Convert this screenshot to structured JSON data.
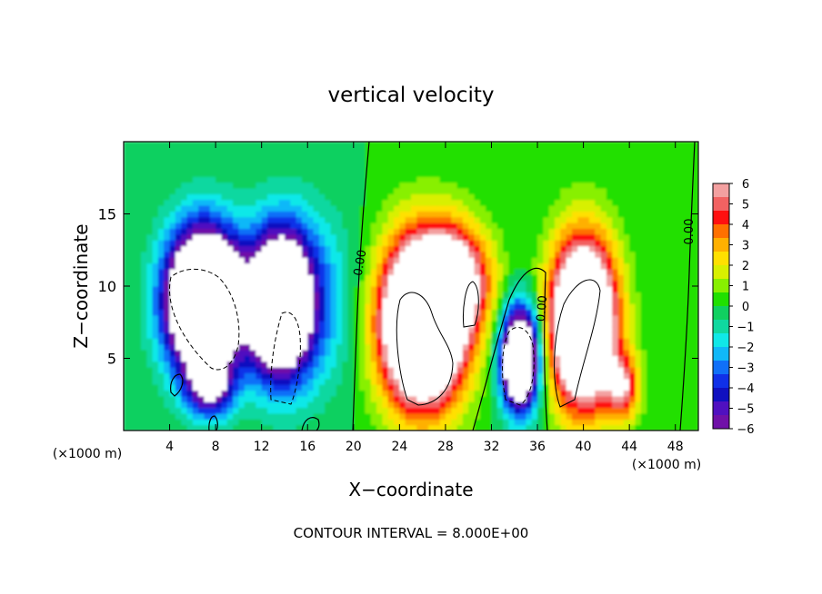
{
  "chart_data": {
    "type": "heatmap",
    "title": "vertical velocity",
    "xlabel": "X−coordinate",
    "ylabel": "Z−coordinate",
    "x_unit_left": "(×1000 m)",
    "x_unit_right": "(×1000 m)",
    "xlim": [
      0,
      50
    ],
    "ylim": [
      0,
      20
    ],
    "xticks": [
      4,
      8,
      12,
      16,
      20,
      24,
      28,
      32,
      36,
      40,
      44,
      48
    ],
    "yticks": [
      5,
      10,
      15
    ],
    "footer": "CONTOUR INTERVAL = 8.000E+00",
    "contour_labels": [
      "0.00",
      "0.00",
      "0.00"
    ],
    "colorbar": {
      "ticks": [
        "6",
        "5",
        "4",
        "3",
        "2",
        "1",
        "0",
        "−1",
        "−2",
        "−3",
        "−4",
        "−5",
        "−6"
      ],
      "range": [
        -6,
        6
      ],
      "colors": [
        "#f3a0a0",
        "#f26262",
        "#ff1010",
        "#ff7000",
        "#ffb000",
        "#ffe000",
        "#d8f000",
        "#88f000",
        "#20e000",
        "#10d060",
        "#10d8a0",
        "#10e8e8",
        "#10b8f8",
        "#1070f8",
        "#1030e8",
        "#1010c0",
        "#5010c0",
        "#7010a8"
      ]
    },
    "cells": [
      {
        "x": 7.0,
        "z": 9.0,
        "sx": 3.2,
        "sz": 4.8,
        "w": -16
      },
      {
        "x": 13.5,
        "z": 8.8,
        "sx": 2.6,
        "sz": 4.8,
        "w": -12
      },
      {
        "x": 16.0,
        "z": 9.0,
        "sx": 4.0,
        "sz": 6.0,
        "w": -3
      },
      {
        "x": 7.5,
        "z": 3.0,
        "sx": 2.0,
        "sz": 2.0,
        "w": -5
      },
      {
        "x": 26.0,
        "z": 7.5,
        "sx": 3.6,
        "sz": 5.6,
        "w": 15
      },
      {
        "x": 29.0,
        "z": 10.5,
        "sx": 3.0,
        "sz": 3.6,
        "w": 6
      },
      {
        "x": 34.5,
        "z": 5.0,
        "sx": 1.6,
        "sz": 3.4,
        "w": -13
      },
      {
        "x": 40.0,
        "z": 7.5,
        "sx": 2.8,
        "sz": 5.6,
        "w": 14
      },
      {
        "x": 43.5,
        "z": 3.0,
        "sx": 1.4,
        "sz": 2.2,
        "w": 5
      }
    ]
  }
}
